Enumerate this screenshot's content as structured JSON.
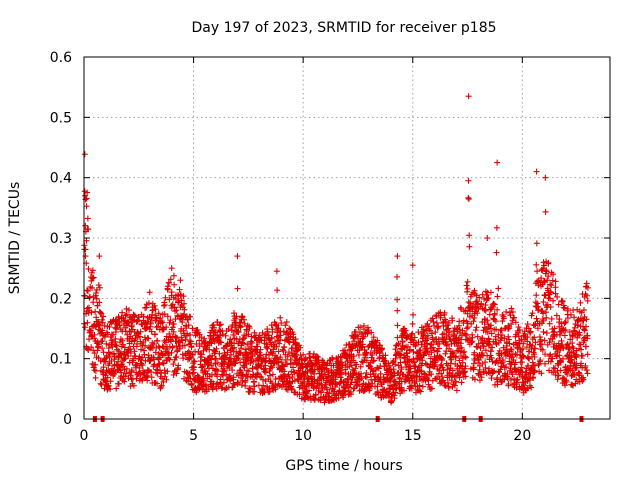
{
  "chart_data": {
    "type": "scatter",
    "title": "Day 197 of 2023, SRMTID for receiver p185",
    "xlabel": "GPS time / hours",
    "ylabel": "SRMTID / TECUs",
    "xlim": [
      0,
      24
    ],
    "ylim": [
      0,
      0.6
    ],
    "grid": true,
    "marker": "+",
    "series_color": "#e00000",
    "x_ticks": [
      0,
      5,
      10,
      15,
      20
    ],
    "x_tick_labels": [
      "0",
      "5",
      "10",
      "15",
      "20"
    ],
    "y_ticks": [
      0,
      0.1,
      0.2,
      0.3,
      0.4,
      0.5,
      0.6
    ],
    "y_tick_labels": [
      "0",
      "0.1",
      "0.2",
      "0.3",
      "0.4",
      "0.5",
      "0.6"
    ],
    "series": [
      {
        "name": "SRMTID",
        "baseline_profile": {
          "x": [
            0.0,
            0.3,
            0.6,
            1.0,
            1.5,
            2.0,
            2.5,
            3.0,
            3.5,
            4.0,
            4.5,
            5.0,
            5.5,
            6.0,
            6.5,
            7.0,
            7.5,
            8.0,
            8.5,
            9.0,
            9.5,
            10.0,
            10.5,
            11.0,
            11.5,
            12.0,
            12.5,
            13.0,
            13.5,
            14.0,
            14.5,
            15.0,
            15.5,
            16.0,
            16.5,
            17.0,
            17.5,
            18.0,
            18.5,
            19.0,
            19.5,
            20.0,
            20.5,
            21.0,
            21.5,
            22.0,
            22.5,
            23.0
          ],
          "y": [
            0.3,
            0.18,
            0.14,
            0.1,
            0.11,
            0.12,
            0.11,
            0.13,
            0.11,
            0.16,
            0.14,
            0.1,
            0.09,
            0.11,
            0.1,
            0.12,
            0.1,
            0.09,
            0.1,
            0.11,
            0.1,
            0.07,
            0.07,
            0.06,
            0.07,
            0.08,
            0.1,
            0.1,
            0.08,
            0.06,
            0.1,
            0.09,
            0.1,
            0.11,
            0.12,
            0.1,
            0.15,
            0.13,
            0.14,
            0.11,
            0.12,
            0.09,
            0.12,
            0.18,
            0.15,
            0.12,
            0.12,
            0.15
          ]
        },
        "spikes": [
          {
            "x": 0.05,
            "peak": 0.37
          },
          {
            "x": 0.7,
            "peak": 0.27
          },
          {
            "x": 3.0,
            "peak": 0.21
          },
          {
            "x": 4.0,
            "peak": 0.25
          },
          {
            "x": 4.4,
            "peak": 0.23
          },
          {
            "x": 7.0,
            "peak": 0.27
          },
          {
            "x": 8.8,
            "peak": 0.245
          },
          {
            "x": 14.3,
            "peak": 0.27
          },
          {
            "x": 15.0,
            "peak": 0.255
          },
          {
            "x": 17.55,
            "peak": 0.535
          },
          {
            "x": 18.4,
            "peak": 0.3
          },
          {
            "x": 18.85,
            "peak": 0.425
          },
          {
            "x": 20.65,
            "peak": 0.41
          },
          {
            "x": 21.05,
            "peak": 0.4
          },
          {
            "x": 21.4,
            "peak": 0.24
          }
        ]
      }
    ],
    "data_gap_markers_x": [
      0.5,
      0.85,
      13.4,
      17.35,
      18.1,
      22.7
    ]
  }
}
